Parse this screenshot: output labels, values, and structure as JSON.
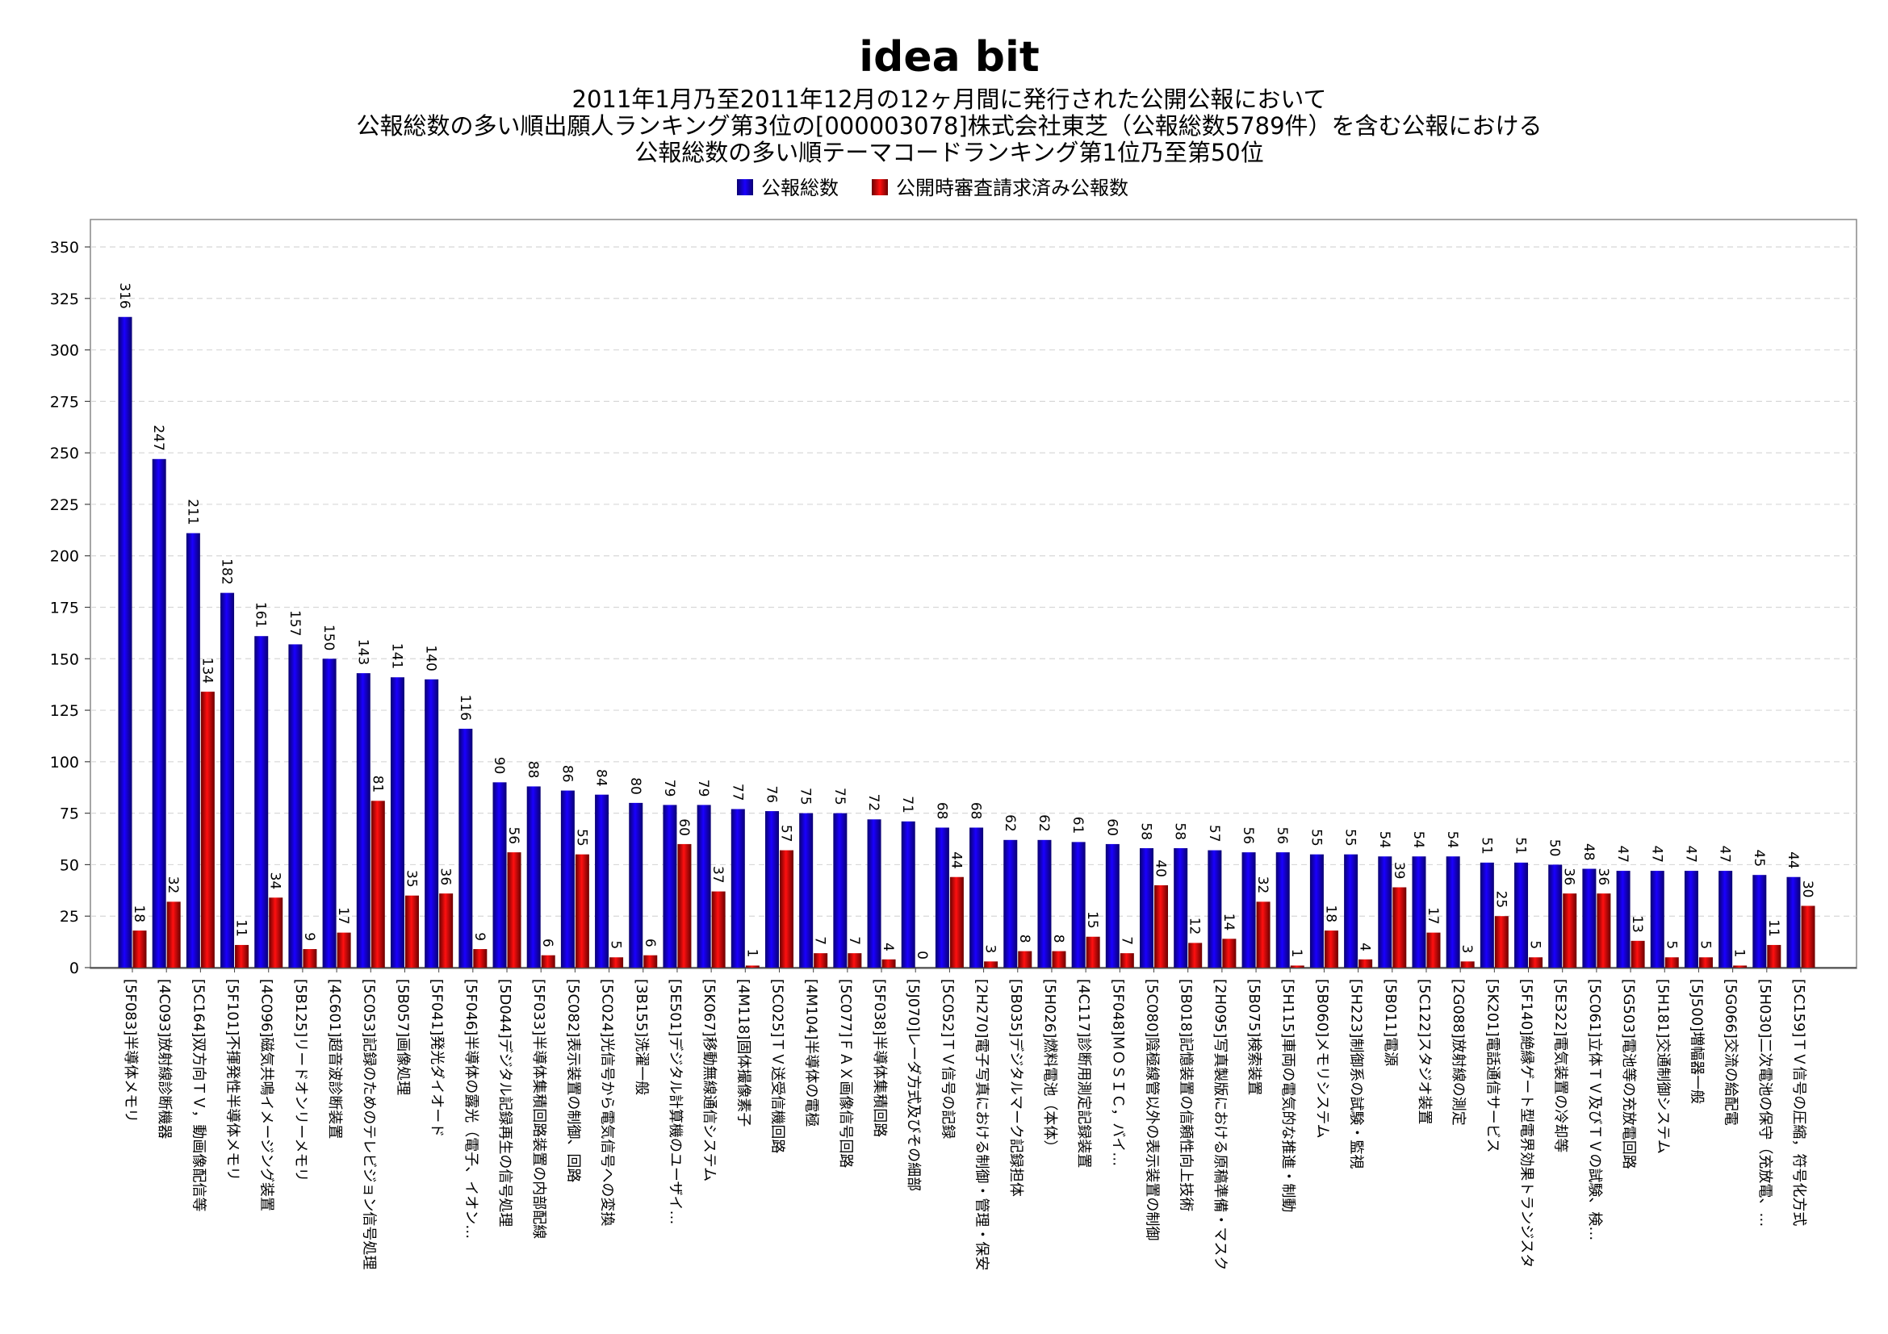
{
  "logo": "idea bit",
  "chart_data": {
    "type": "bar",
    "title_lines": [
      "2011年1月乃至2011年12月の12ヶ月間に発行された公開公報において",
      "公報総数の多い順出願人ランキング第3位の[000003078]株式会社東芝（公報総数5789件）を含む公報における",
      "公報総数の多い順テーマコードランキング第1位乃至第50位"
    ],
    "legend": [
      "公報総数",
      "公開時審査請求済み公報数"
    ],
    "legend_position": "top-center",
    "ylim": [
      0,
      350
    ],
    "yticks": [
      0,
      25,
      50,
      75,
      100,
      125,
      150,
      175,
      200,
      225,
      250,
      275,
      300,
      325,
      350
    ],
    "grid": true,
    "categories": [
      "[5F083]半導体メモリ",
      "[4C093]放射線診断機器",
      "[5C164]双方向ＴＶ，動画像配信等",
      "[5F101]不揮発性半導体メモリ",
      "[4C096]磁気共鳴イメージング装置",
      "[5B125]リードオンリーメモリ",
      "[4C601]超音波診断装置",
      "[5C053]記録のためのテレビジョン信号処理",
      "[5B057]画像処理",
      "[5F041]発光ダイオード",
      "[5F046]半導体の露光（電子、イオン…",
      "[5D044]デジタル記録再生の信号処理",
      "[5F033]半導体集積回路装置の内部配線",
      "[5C082]表示装置の制御、回路",
      "[5C024]光信号から電気信号への変換",
      "[3B155]洗濯一般",
      "[5E501]デジタル計算機のユーザイ…",
      "[5K067]移動無線通信システム",
      "[4M118]固体撮像素子",
      "[5C025]ＴＶ送受信機回路",
      "[4M104]半導体の電極",
      "[5C077]ＦＡＸ画像信号回路",
      "[5F038]半導体集積回路",
      "[5J070]レーダ方式及びその細部",
      "[5C052]ＴＶ信号の記録",
      "[2H270]電子写真における制御・管理・保安",
      "[5B035]デジタルマーク記録担体",
      "[5H026]燃料電池（本体）",
      "[4C117]診断用測定記録装置",
      "[5F048]ＭＯＳＩＣ，バイ…",
      "[5C080]陰極線管以外の表示装置の制御",
      "[5B018]記憶装置の信頼性向上技術",
      "[2H095]写真製版における原稿準備・マスク",
      "[5B075]検索装置",
      "[5H115]車両の電気的な推進・制動",
      "[5B060]メモリシステム",
      "[5H223]制御系の試験・監視",
      "[5B011]電源",
      "[5C122]スタジオ装置",
      "[2G088]放射線の測定",
      "[5K201]電話通信サービス",
      "[5F140]絶縁ゲート型電界効果トランジスタ",
      "[5E322]電気装置の冷却等",
      "[5C061]立体ＴＶ及びＴＶの試験、検…",
      "[5G503]電池等の充放電回路",
      "[5H181]交通制御システム",
      "[5J500]増幅器一般",
      "[5G066]交流の給配電",
      "[5H030]二次電池の保守（充放電、…",
      "[5C159]ＴＶ信号の圧縮，符号化方式"
    ],
    "series": [
      {
        "name": "公報総数",
        "color": "#1400e6",
        "values": [
          316,
          247,
          211,
          182,
          161,
          157,
          150,
          143,
          141,
          140,
          116,
          90,
          88,
          86,
          84,
          80,
          79,
          79,
          77,
          76,
          75,
          75,
          72,
          71,
          68,
          68,
          62,
          62,
          61,
          60,
          58,
          58,
          57,
          56,
          56,
          55,
          55,
          54,
          54,
          54,
          51,
          51,
          50,
          48,
          47,
          47,
          47,
          47,
          45,
          44
        ]
      },
      {
        "name": "公開時審査請求済み公報数",
        "color": "#dd0000",
        "values": [
          18,
          32,
          134,
          11,
          34,
          9,
          17,
          81,
          35,
          36,
          9,
          56,
          6,
          55,
          5,
          6,
          60,
          37,
          1,
          57,
          7,
          7,
          4,
          0,
          44,
          3,
          8,
          8,
          15,
          7,
          40,
          12,
          14,
          32,
          1,
          18,
          4,
          39,
          17,
          3,
          25,
          5,
          36,
          36,
          13,
          5,
          5,
          1,
          11,
          30
        ]
      }
    ]
  }
}
